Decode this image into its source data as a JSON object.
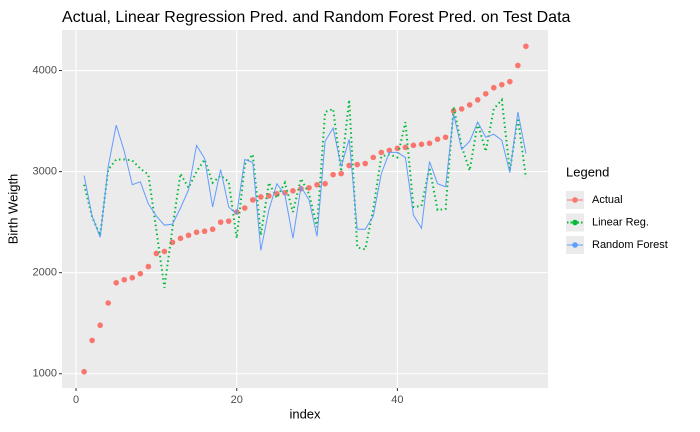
{
  "chart_data": {
    "type": "line",
    "title": "Actual, Linear Regression Pred. and Random Forest Pred. on Test Data",
    "x_label": "index",
    "y_label": "Birth Weigth",
    "legend_title": "Legend",
    "legend_position": "right",
    "grid": true,
    "xlim": [
      -1.75,
      58.75
    ],
    "xticks": [
      0,
      20,
      40
    ],
    "ylim": [
      859,
      4401
    ],
    "yticks": [
      1000,
      2000,
      3000,
      4000
    ],
    "x": [
      1,
      2,
      3,
      4,
      5,
      6,
      7,
      8,
      9,
      10,
      11,
      12,
      13,
      14,
      15,
      16,
      17,
      18,
      19,
      20,
      21,
      22,
      23,
      24,
      25,
      26,
      27,
      28,
      29,
      30,
      31,
      32,
      33,
      34,
      35,
      36,
      37,
      38,
      39,
      40,
      41,
      42,
      43,
      44,
      45,
      46,
      47,
      48,
      49,
      50,
      51,
      52,
      53,
      54,
      55,
      56
    ],
    "series": [
      {
        "name": "Actual",
        "color": "#F8766D",
        "style": "points",
        "values": [
          1020,
          1330,
          1480,
          1700,
          1900,
          1930,
          1950,
          1990,
          2060,
          2190,
          2210,
          2300,
          2340,
          2370,
          2400,
          2410,
          2430,
          2500,
          2510,
          2600,
          2640,
          2720,
          2750,
          2760,
          2780,
          2790,
          2810,
          2830,
          2840,
          2870,
          2880,
          2970,
          2980,
          3060,
          3070,
          3080,
          3140,
          3190,
          3210,
          3230,
          3240,
          3260,
          3270,
          3280,
          3320,
          3340,
          3600,
          3620,
          3660,
          3710,
          3770,
          3830,
          3860,
          3890,
          4050,
          4240
        ]
      },
      {
        "name": "Linear Reg.",
        "color": "#00BA38",
        "style": "dotted",
        "values": [
          2870,
          2550,
          2370,
          3020,
          3120,
          3120,
          3110,
          3030,
          2970,
          2420,
          1850,
          2440,
          2980,
          2840,
          3000,
          3120,
          2890,
          2960,
          2900,
          2340,
          3070,
          3170,
          2370,
          2890,
          2740,
          2890,
          2600,
          2930,
          2780,
          2450,
          3590,
          3620,
          3000,
          3710,
          2250,
          2230,
          2630,
          3150,
          3170,
          3140,
          3490,
          2650,
          2660,
          3040,
          2620,
          2630,
          3640,
          3250,
          3010,
          3480,
          3200,
          3620,
          3710,
          3010,
          3530,
          2940
        ]
      },
      {
        "name": "Random Forest",
        "color": "#619CFF",
        "style": "solid",
        "values": [
          2960,
          2560,
          2350,
          3050,
          3460,
          3200,
          2870,
          2900,
          2680,
          2560,
          2470,
          2480,
          2640,
          2820,
          3260,
          3130,
          2650,
          3020,
          2650,
          2580,
          3120,
          3090,
          2220,
          2620,
          2880,
          2770,
          2340,
          2850,
          2720,
          2360,
          3300,
          3430,
          3050,
          3320,
          2430,
          2430,
          2560,
          2980,
          3190,
          3190,
          3140,
          2570,
          2440,
          3100,
          2880,
          2850,
          3570,
          3220,
          3300,
          3490,
          3340,
          3370,
          3310,
          2990,
          3590,
          3180
        ]
      }
    ]
  }
}
